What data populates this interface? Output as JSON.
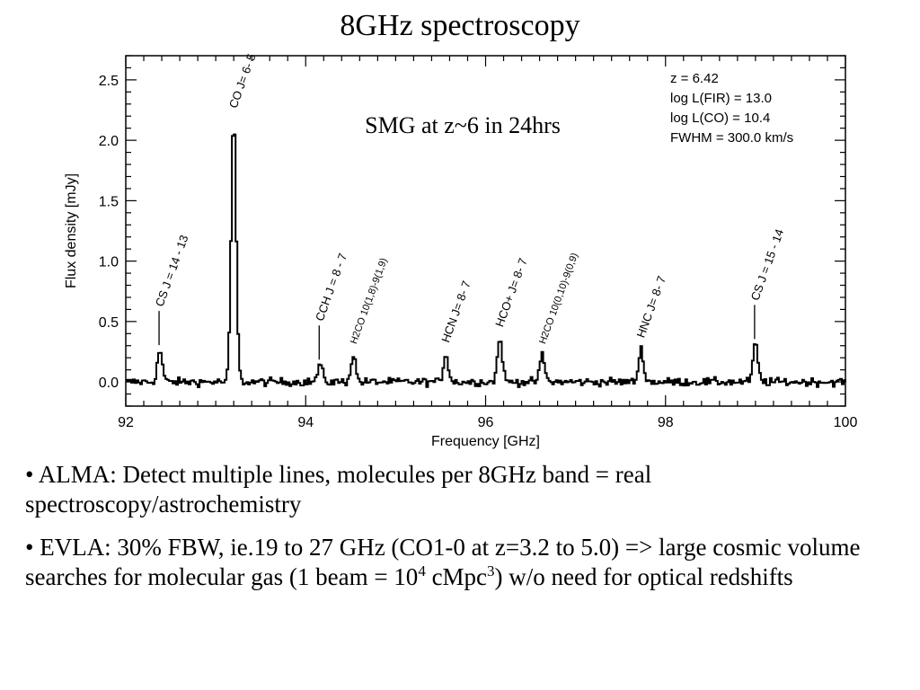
{
  "slide": {
    "title": "8GHz spectroscopy"
  },
  "chart_data": {
    "type": "line",
    "xlabel": "Frequency [GHz]",
    "ylabel": "Flux density [mJy]",
    "xlim": [
      92,
      100
    ],
    "ylim": [
      -0.2,
      2.7
    ],
    "xticks": [
      92,
      94,
      96,
      98,
      100
    ],
    "xtick_labels": [
      "92",
      "94",
      "96",
      "98",
      "100"
    ],
    "yticks": [
      0.0,
      0.5,
      1.0,
      1.5,
      2.0,
      2.5
    ],
    "ytick_labels": [
      "0.0",
      "0.5",
      "1.0",
      "1.5",
      "2.0",
      "2.5"
    ],
    "annotation": "SMG at z~6  in 24hrs",
    "params": [
      "z =  6.42",
      "log L(FIR) =  13.0",
      "log L(CO) =  10.4",
      "FWHM =  300.0 km/s"
    ],
    "line_style": "steps",
    "grid": false,
    "lines": [
      {
        "label": "CS J = 14 - 13",
        "freq": 92.37,
        "peak": 0.26,
        "marker": true
      },
      {
        "label": "CO J= 6- 5",
        "freq": 93.19,
        "peak": 2.17,
        "marker": false
      },
      {
        "label": "CCH J = 8 - 7",
        "freq": 94.15,
        "peak": 0.14,
        "marker": true
      },
      {
        "label": "H2CO 10(1,8)-9(1,9)",
        "freq": 94.52,
        "peak": 0.22,
        "marker": false
      },
      {
        "label": "HCN J= 8- 7",
        "freq": 95.55,
        "peak": 0.23,
        "marker": false
      },
      {
        "label": "HCO+ J= 8- 7",
        "freq": 96.15,
        "peak": 0.36,
        "marker": false
      },
      {
        "label": "H2CO 10(0,10)-9(0,9)",
        "freq": 96.62,
        "peak": 0.22,
        "marker": false
      },
      {
        "label": "HNC J= 8- 7",
        "freq": 97.72,
        "peak": 0.27,
        "marker": false
      },
      {
        "label": "CS J = 15 - 14",
        "freq": 98.99,
        "peak": 0.31,
        "marker": true
      }
    ]
  },
  "bullets": {
    "b1": "• ALMA: Detect multiple lines, molecules per 8GHz band = real spectroscopy/astrochemistry",
    "b2_part1": "• EVLA: 30% FBW, ie.19 to 27 GHz (CO1-0 at z=3.2 to 5.0) => large cosmic volume searches for molecular gas  (1 beam = 10",
    "b2_sup1": "4",
    "b2_part2": " cMpc",
    "b2_sup2": "3",
    "b2_part3": ") w/o need for optical redshifts"
  }
}
